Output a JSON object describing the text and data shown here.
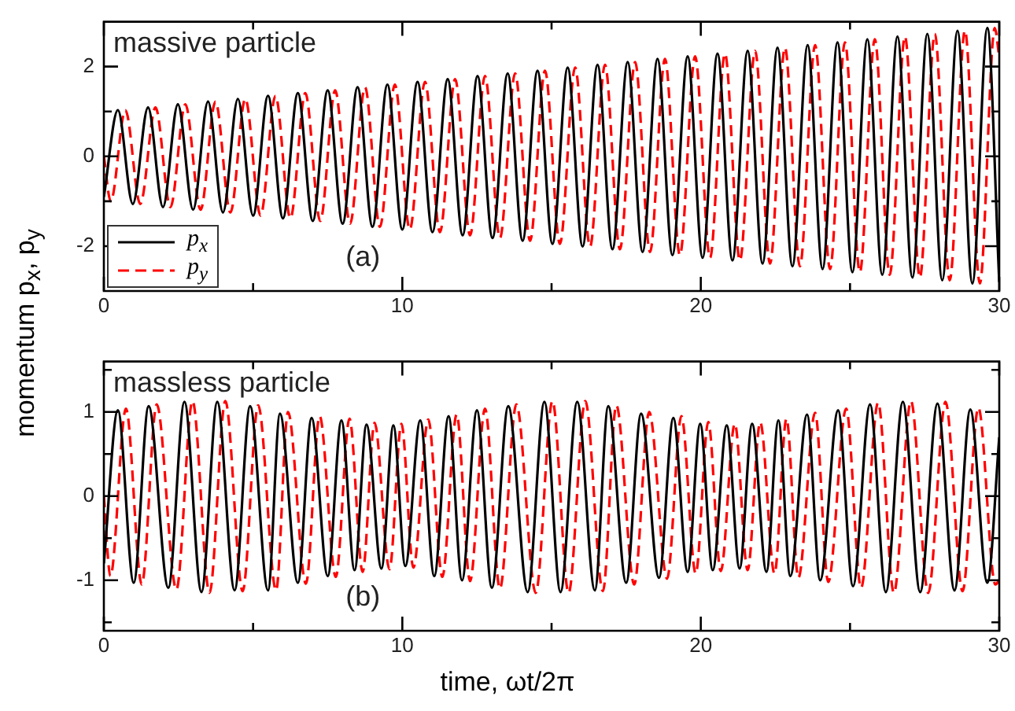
{
  "chart_data": [
    {
      "type": "line",
      "ylabel": "momentum p$_{x}$, p$_{y}$",
      "annotations": [
        "massive particle",
        "(a)"
      ],
      "xlim": [
        0,
        30
      ],
      "xticks": [
        0,
        {
          "value": 5,
          "label": null
        },
        10,
        {
          "value": 15,
          "label": null
        },
        20,
        {
          "value": 25,
          "label": null
        },
        30
      ],
      "ylim": [
        -3,
        3
      ],
      "yticks": [
        -2,
        {
          "value": -1,
          "label": null
        },
        0,
        {
          "value": 1,
          "label": null
        },
        2
      ],
      "legend": "bottom left",
      "marker": "none",
      "series": [
        {
          "name": "p$_{x}$",
          "color": "#000000",
          "line_style": "solid",
          "x": [
            0,
            0.47,
            0.97,
            1.48,
            1.98,
            2.48,
            2.99,
            3.49,
            3.99,
            4.49,
            5.0,
            5.5,
            6.0,
            6.5,
            7.0,
            7.5,
            8.0,
            8.5,
            9.0,
            9.5,
            10.0,
            10.51,
            11.01,
            11.52,
            12.02,
            12.52,
            13.02,
            13.53,
            14.03,
            14.53,
            15.03,
            15.54,
            16.04,
            16.54,
            17.04,
            17.55,
            18.05,
            18.55,
            19.05,
            19.56,
            20.06,
            20.56,
            21.06,
            21.57,
            22.07,
            22.57,
            23.07,
            23.58,
            24.08,
            24.58,
            25.08,
            25.58,
            26.08,
            26.59,
            27.09,
            27.59,
            28.09,
            28.6,
            29.1,
            29.6,
            30
          ],
          "values": [
            -0.9,
            1.03,
            -1.06,
            1.09,
            -1.13,
            1.16,
            -1.19,
            1.22,
            -1.25,
            1.28,
            -1.32,
            1.35,
            -1.38,
            1.41,
            -1.44,
            1.47,
            -1.5,
            1.54,
            -1.57,
            1.6,
            -1.63,
            1.66,
            -1.69,
            1.72,
            -1.76,
            1.79,
            -1.82,
            1.85,
            -1.88,
            1.91,
            -1.95,
            1.98,
            -2.01,
            2.04,
            -2.07,
            2.1,
            -2.13,
            2.17,
            -2.2,
            2.23,
            -2.26,
            2.29,
            -2.32,
            2.35,
            -2.39,
            2.42,
            -2.45,
            2.48,
            -2.51,
            2.54,
            -2.58,
            2.61,
            -2.64,
            2.67,
            -2.7,
            2.73,
            -2.76,
            2.8,
            -2.83,
            2.86,
            -2.8
          ]
        },
        {
          "name": "p$_{y}$",
          "color": "#ff0000",
          "line_style": "dashed",
          "x": [
            0,
            0.23,
            0.72,
            1.22,
            1.73,
            2.23,
            2.73,
            3.24,
            3.74,
            4.24,
            4.74,
            5.25,
            5.75,
            6.25,
            6.75,
            7.25,
            7.75,
            8.25,
            8.75,
            9.25,
            9.75,
            10.25,
            10.76,
            11.26,
            11.77,
            12.27,
            12.77,
            13.27,
            13.78,
            14.28,
            14.78,
            15.28,
            15.79,
            16.29,
            16.79,
            17.29,
            17.8,
            18.3,
            18.8,
            19.3,
            19.81,
            20.31,
            20.81,
            21.31,
            21.82,
            22.32,
            22.82,
            23.32,
            23.83,
            24.33,
            24.83,
            25.33,
            25.83,
            26.33,
            26.84,
            27.34,
            27.84,
            28.34,
            28.85,
            29.35,
            29.85,
            30
          ],
          "values": [
            0,
            -1.0,
            1.03,
            -1.06,
            1.09,
            -1.13,
            1.16,
            -1.19,
            1.22,
            -1.25,
            1.28,
            -1.32,
            1.35,
            -1.38,
            1.41,
            -1.44,
            1.47,
            -1.5,
            1.54,
            -1.57,
            1.6,
            -1.63,
            1.66,
            -1.69,
            1.72,
            -1.76,
            1.79,
            -1.82,
            1.85,
            -1.88,
            1.91,
            -1.95,
            1.98,
            -2.01,
            2.04,
            -2.07,
            2.1,
            -2.13,
            2.17,
            -2.2,
            2.23,
            -2.26,
            2.29,
            -2.32,
            2.35,
            -2.39,
            2.42,
            -2.45,
            2.48,
            -2.51,
            2.54,
            -2.58,
            2.61,
            -2.64,
            2.67,
            -2.7,
            2.73,
            -2.76,
            2.8,
            -2.83,
            2.86,
            2.2
          ]
        }
      ]
    },
    {
      "type": "line",
      "xlabel": "time, ωt/2π",
      "annotations": [
        "massless particle",
        "(b)"
      ],
      "xlim": [
        0,
        30
      ],
      "xticks": [
        0,
        {
          "value": 5,
          "label": null
        },
        10,
        {
          "value": 15,
          "label": null
        },
        20,
        {
          "value": 25,
          "label": null
        },
        30
      ],
      "ylim": [
        -1.6,
        1.6
      ],
      "yticks": [
        {
          "value": -1.5,
          "label": null
        },
        -1,
        {
          "value": -0.5,
          "label": null
        },
        0,
        {
          "value": 0.5,
          "label": null
        },
        1,
        {
          "value": 1.5,
          "label": null
        }
      ],
      "marker": "none",
      "series": [
        {
          "color": "#000000",
          "line_style": "solid",
          "x": [
            0,
            0.47,
            1.0,
            1.5,
            2.16,
            2.7,
            3.27,
            3.8,
            4.38,
            4.9,
            5.5,
            5.9,
            6.5,
            6.96,
            7.5,
            7.96,
            8.4,
            8.8,
            9.3,
            9.7,
            10.1,
            10.6,
            11.07,
            11.55,
            12.0,
            12.5,
            13.0,
            13.55,
            14.2,
            14.76,
            15.3,
            15.86,
            16.45,
            16.9,
            17.5,
            18.0,
            18.6,
            19.08,
            19.56,
            19.98,
            20.4,
            20.87,
            21.3,
            21.72,
            22.2,
            22.6,
            23.0,
            23.56,
            24.0,
            24.6,
            25.1,
            25.67,
            26.2,
            26.77,
            27.35,
            27.93,
            28.5,
            29.03,
            29.6,
            30
          ],
          "values": [
            -0.8,
            1.02,
            -1.03,
            1.07,
            -1.09,
            1.12,
            -1.14,
            1.12,
            -1.12,
            1.07,
            -1.12,
            0.98,
            -1.03,
            0.93,
            -0.95,
            0.9,
            -0.88,
            0.85,
            -0.86,
            0.84,
            -0.83,
            0.9,
            -0.95,
            0.95,
            -1.0,
            1.02,
            -1.09,
            1.07,
            -1.14,
            1.12,
            -1.14,
            1.12,
            -1.12,
            1.07,
            -1.03,
            0.98,
            -0.97,
            0.93,
            -0.9,
            0.86,
            -0.88,
            0.84,
            -0.86,
            0.86,
            -0.9,
            0.9,
            -0.95,
            0.97,
            -1.0,
            1.02,
            -1.07,
            1.09,
            -1.14,
            1.12,
            -1.14,
            1.1,
            -1.12,
            1.03,
            -1.03,
            0.7
          ]
        },
        {
          "color": "#ff0000",
          "line_style": "dashed",
          "x": [
            0,
            0.22,
            0.74,
            1.27,
            1.77,
            2.43,
            2.97,
            3.54,
            4.07,
            4.65,
            5.17,
            5.77,
            6.17,
            6.77,
            7.23,
            7.77,
            8.23,
            8.67,
            9.07,
            9.57,
            9.97,
            10.37,
            10.87,
            11.34,
            11.82,
            12.27,
            12.77,
            13.27,
            13.82,
            14.47,
            15.03,
            15.57,
            16.13,
            16.72,
            17.17,
            17.77,
            18.27,
            18.87,
            19.35,
            19.83,
            20.25,
            20.67,
            21.14,
            21.57,
            21.99,
            22.47,
            22.87,
            23.27,
            23.83,
            24.27,
            24.87,
            25.37,
            25.94,
            26.47,
            27.04,
            27.62,
            28.2,
            28.77,
            29.3,
            29.87,
            30
          ],
          "values": [
            0,
            -0.95,
            1.04,
            -1.05,
            1.09,
            -1.11,
            1.13,
            -1.15,
            1.13,
            -1.13,
            1.08,
            -1.12,
            1.0,
            -1.04,
            0.95,
            -0.96,
            0.92,
            -0.9,
            0.87,
            -0.87,
            0.86,
            -0.85,
            0.91,
            -0.96,
            0.97,
            -1.01,
            1.04,
            -1.1,
            1.09,
            -1.15,
            1.13,
            -1.15,
            1.13,
            -1.13,
            1.08,
            -1.05,
            1.0,
            -0.98,
            0.95,
            -0.92,
            0.88,
            -0.89,
            0.86,
            -0.88,
            0.88,
            -0.92,
            0.92,
            -0.97,
            0.99,
            -1.02,
            1.04,
            -1.09,
            1.11,
            -1.15,
            1.13,
            -1.15,
            1.12,
            -1.13,
            1.05,
            -1.05,
            -1.0
          ]
        }
      ]
    }
  ]
}
